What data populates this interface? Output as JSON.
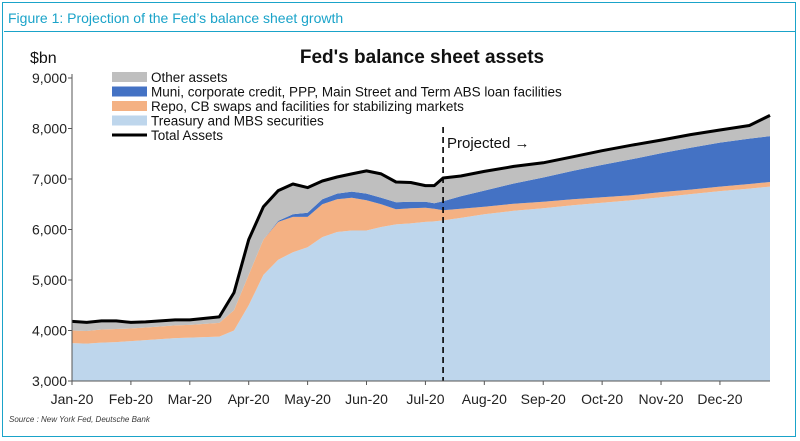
{
  "figure_caption": "Figure 1: Projection of the Fed’s balance sheet growth",
  "source": "Source : New York Fed, Deutsche Bank",
  "chart_data": {
    "type": "area",
    "title": "Fed's balance sheet assets",
    "ylabel": "$bn",
    "xlabel": "",
    "ylim": [
      3000,
      9000
    ],
    "yticks": [
      3000,
      4000,
      5000,
      6000,
      7000,
      8000,
      9000
    ],
    "ytick_labels": [
      "3,000",
      "4,000",
      "5,000",
      "6,000",
      "7,000",
      "8,000",
      "9,000"
    ],
    "x_months": [
      "Jan-20",
      "Feb-20",
      "Mar-20",
      "Apr-20",
      "May-20",
      "Jun-20",
      "Jul-20",
      "Aug-20",
      "Sep-20",
      "Oct-20",
      "Nov-20",
      "Dec-20"
    ],
    "x": [
      0,
      0.25,
      0.5,
      0.75,
      1,
      1.25,
      1.5,
      1.75,
      2,
      2.25,
      2.5,
      2.75,
      3,
      3.25,
      3.5,
      3.75,
      4,
      4.25,
      4.5,
      4.75,
      5,
      5.25,
      5.5,
      5.75,
      6,
      6.15,
      6.3,
      6.6,
      7,
      7.5,
      8,
      8.5,
      9,
      9.5,
      10,
      10.5,
      11,
      11.5,
      11.85
    ],
    "series": [
      {
        "name": "Treasury and MBS securities",
        "color": "#bed6ec",
        "values": [
          3750,
          3740,
          3760,
          3770,
          3790,
          3810,
          3830,
          3850,
          3860,
          3870,
          3880,
          4000,
          4500,
          5100,
          5400,
          5550,
          5650,
          5850,
          5950,
          5980,
          5980,
          6050,
          6100,
          6120,
          6150,
          6160,
          6180,
          6230,
          6300,
          6370,
          6420,
          6480,
          6530,
          6580,
          6640,
          6700,
          6760,
          6810,
          6850
        ]
      },
      {
        "name": "Repo, CB swaps and facilities for stabilizing markets",
        "color": "#f4b183",
        "values": [
          250,
          250,
          260,
          260,
          250,
          250,
          250,
          250,
          250,
          260,
          270,
          400,
          600,
          700,
          750,
          700,
          600,
          650,
          650,
          650,
          600,
          450,
          300,
          300,
          280,
          250,
          200,
          180,
          150,
          140,
          130,
          120,
          110,
          100,
          100,
          90,
          90,
          90,
          90
        ]
      },
      {
        "name": "Muni, corporate credit, PPP, Main Street and Term ABS loan facilities",
        "color": "#4472c4",
        "values": [
          0,
          0,
          0,
          0,
          0,
          0,
          0,
          0,
          0,
          0,
          0,
          0,
          0,
          0,
          20,
          50,
          80,
          100,
          110,
          120,
          130,
          130,
          140,
          130,
          120,
          110,
          180,
          250,
          320,
          400,
          480,
          560,
          640,
          710,
          770,
          830,
          870,
          900,
          910
        ]
      },
      {
        "name": "Other assets",
        "color": "#bfbfbf",
        "values": [
          180,
          170,
          170,
          160,
          120,
          110,
          110,
          110,
          100,
          110,
          120,
          350,
          700,
          650,
          600,
          600,
          500,
          360,
          330,
          350,
          450,
          470,
          400,
          380,
          320,
          350,
          460,
          400,
          380,
          340,
          290,
          280,
          280,
          280,
          260,
          260,
          250,
          260,
          410
        ]
      }
    ],
    "total": {
      "name": "Total Assets",
      "color": "#000000",
      "values": [
        4180,
        4160,
        4190,
        4190,
        4160,
        4170,
        4190,
        4210,
        4210,
        4240,
        4270,
        4750,
        5800,
        6450,
        6770,
        6900,
        6830,
        6960,
        7040,
        7100,
        7160,
        7100,
        6940,
        6930,
        6870,
        6870,
        7020,
        7060,
        7150,
        7250,
        7320,
        7440,
        7560,
        7670,
        7770,
        7880,
        7970,
        8060,
        8260
      ]
    },
    "projection_x": 6.3,
    "annotation": "Projected →",
    "legend_placement": "top-left",
    "grid": false
  }
}
